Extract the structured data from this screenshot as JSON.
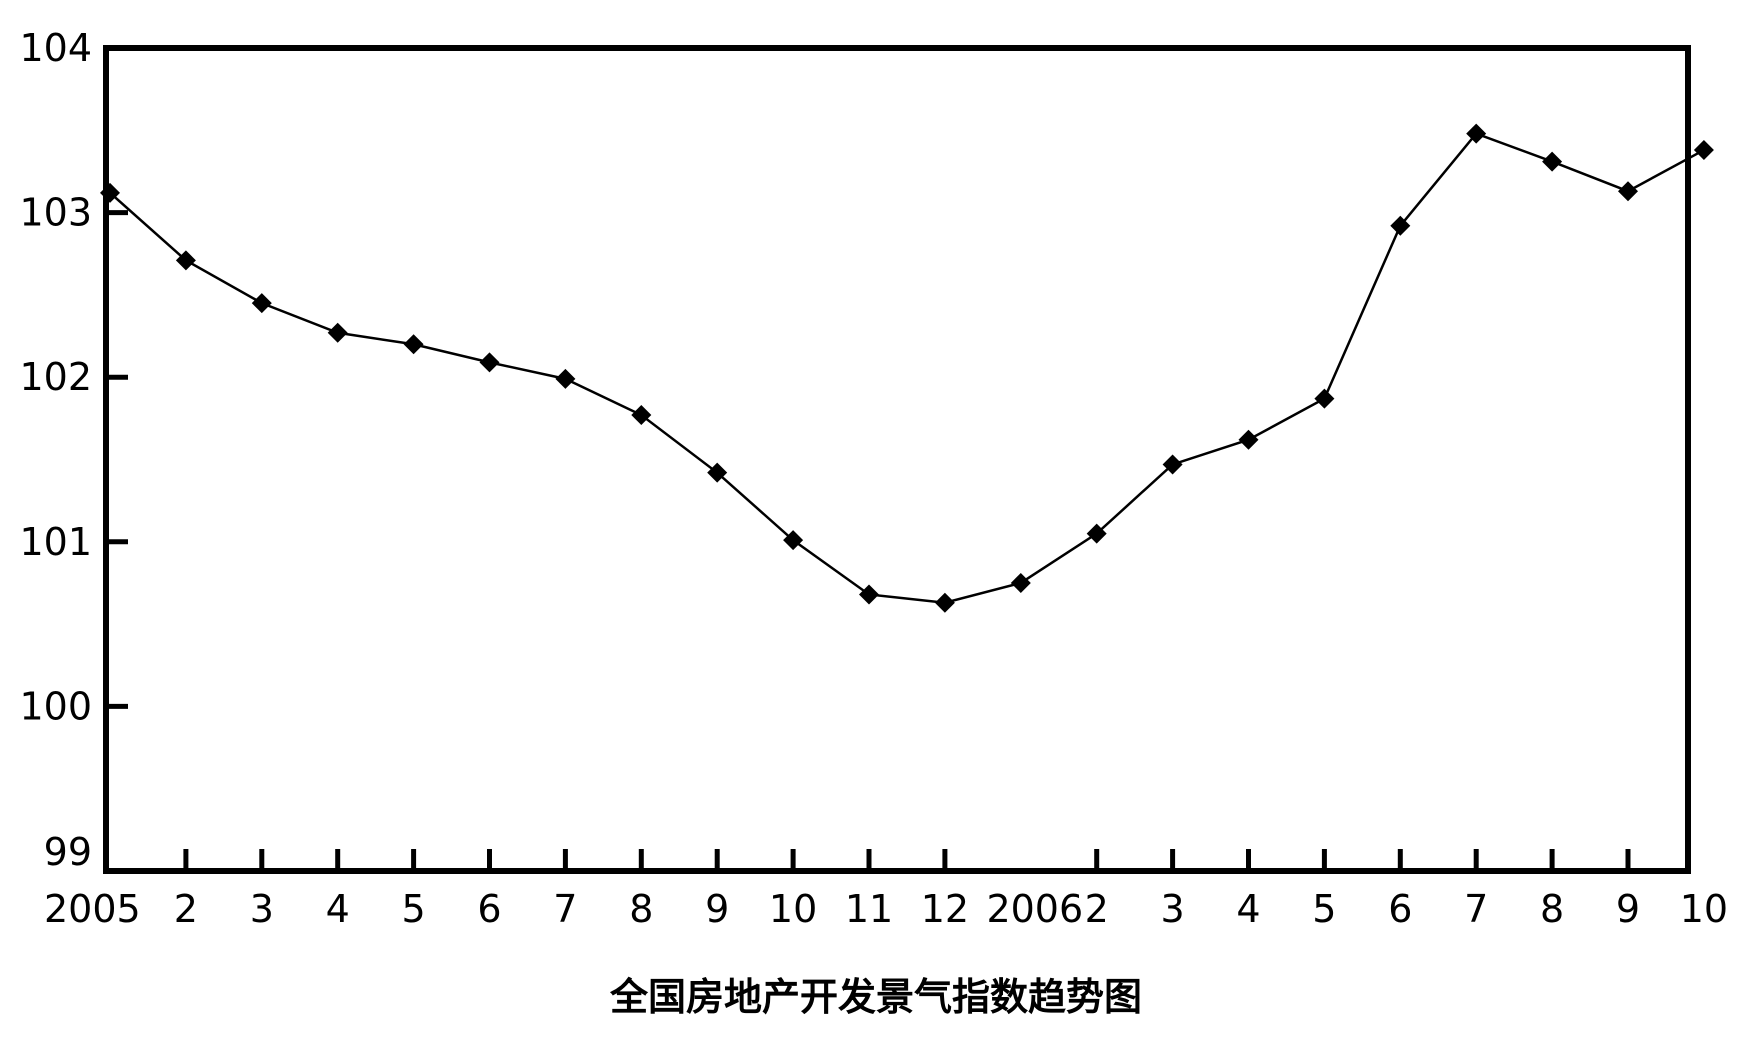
{
  "chart_data": {
    "type": "line",
    "title": "全国房地产开发景气指数趋势图",
    "xlabel": "",
    "ylabel": "",
    "categories": [
      "2005",
      "2",
      "3",
      "4",
      "5",
      "6",
      "7",
      "8",
      "9",
      "10",
      "11",
      "12",
      "2006",
      "2",
      "3",
      "4",
      "5",
      "6",
      "7",
      "8",
      "9",
      "10"
    ],
    "series": [
      {
        "values": [
          103.12,
          102.71,
          102.45,
          102.27,
          102.2,
          102.09,
          101.99,
          101.77,
          101.42,
          101.01,
          100.68,
          100.63,
          100.75,
          101.05,
          101.47,
          101.62,
          101.87,
          102.92,
          103.48,
          103.31,
          103.13,
          103.38
        ],
        "color": "#000000",
        "marker": "diamond"
      }
    ],
    "yticks": [
      99,
      100,
      101,
      102,
      103,
      104
    ],
    "ylim": [
      99,
      104
    ],
    "grid": false,
    "legend": "none"
  }
}
